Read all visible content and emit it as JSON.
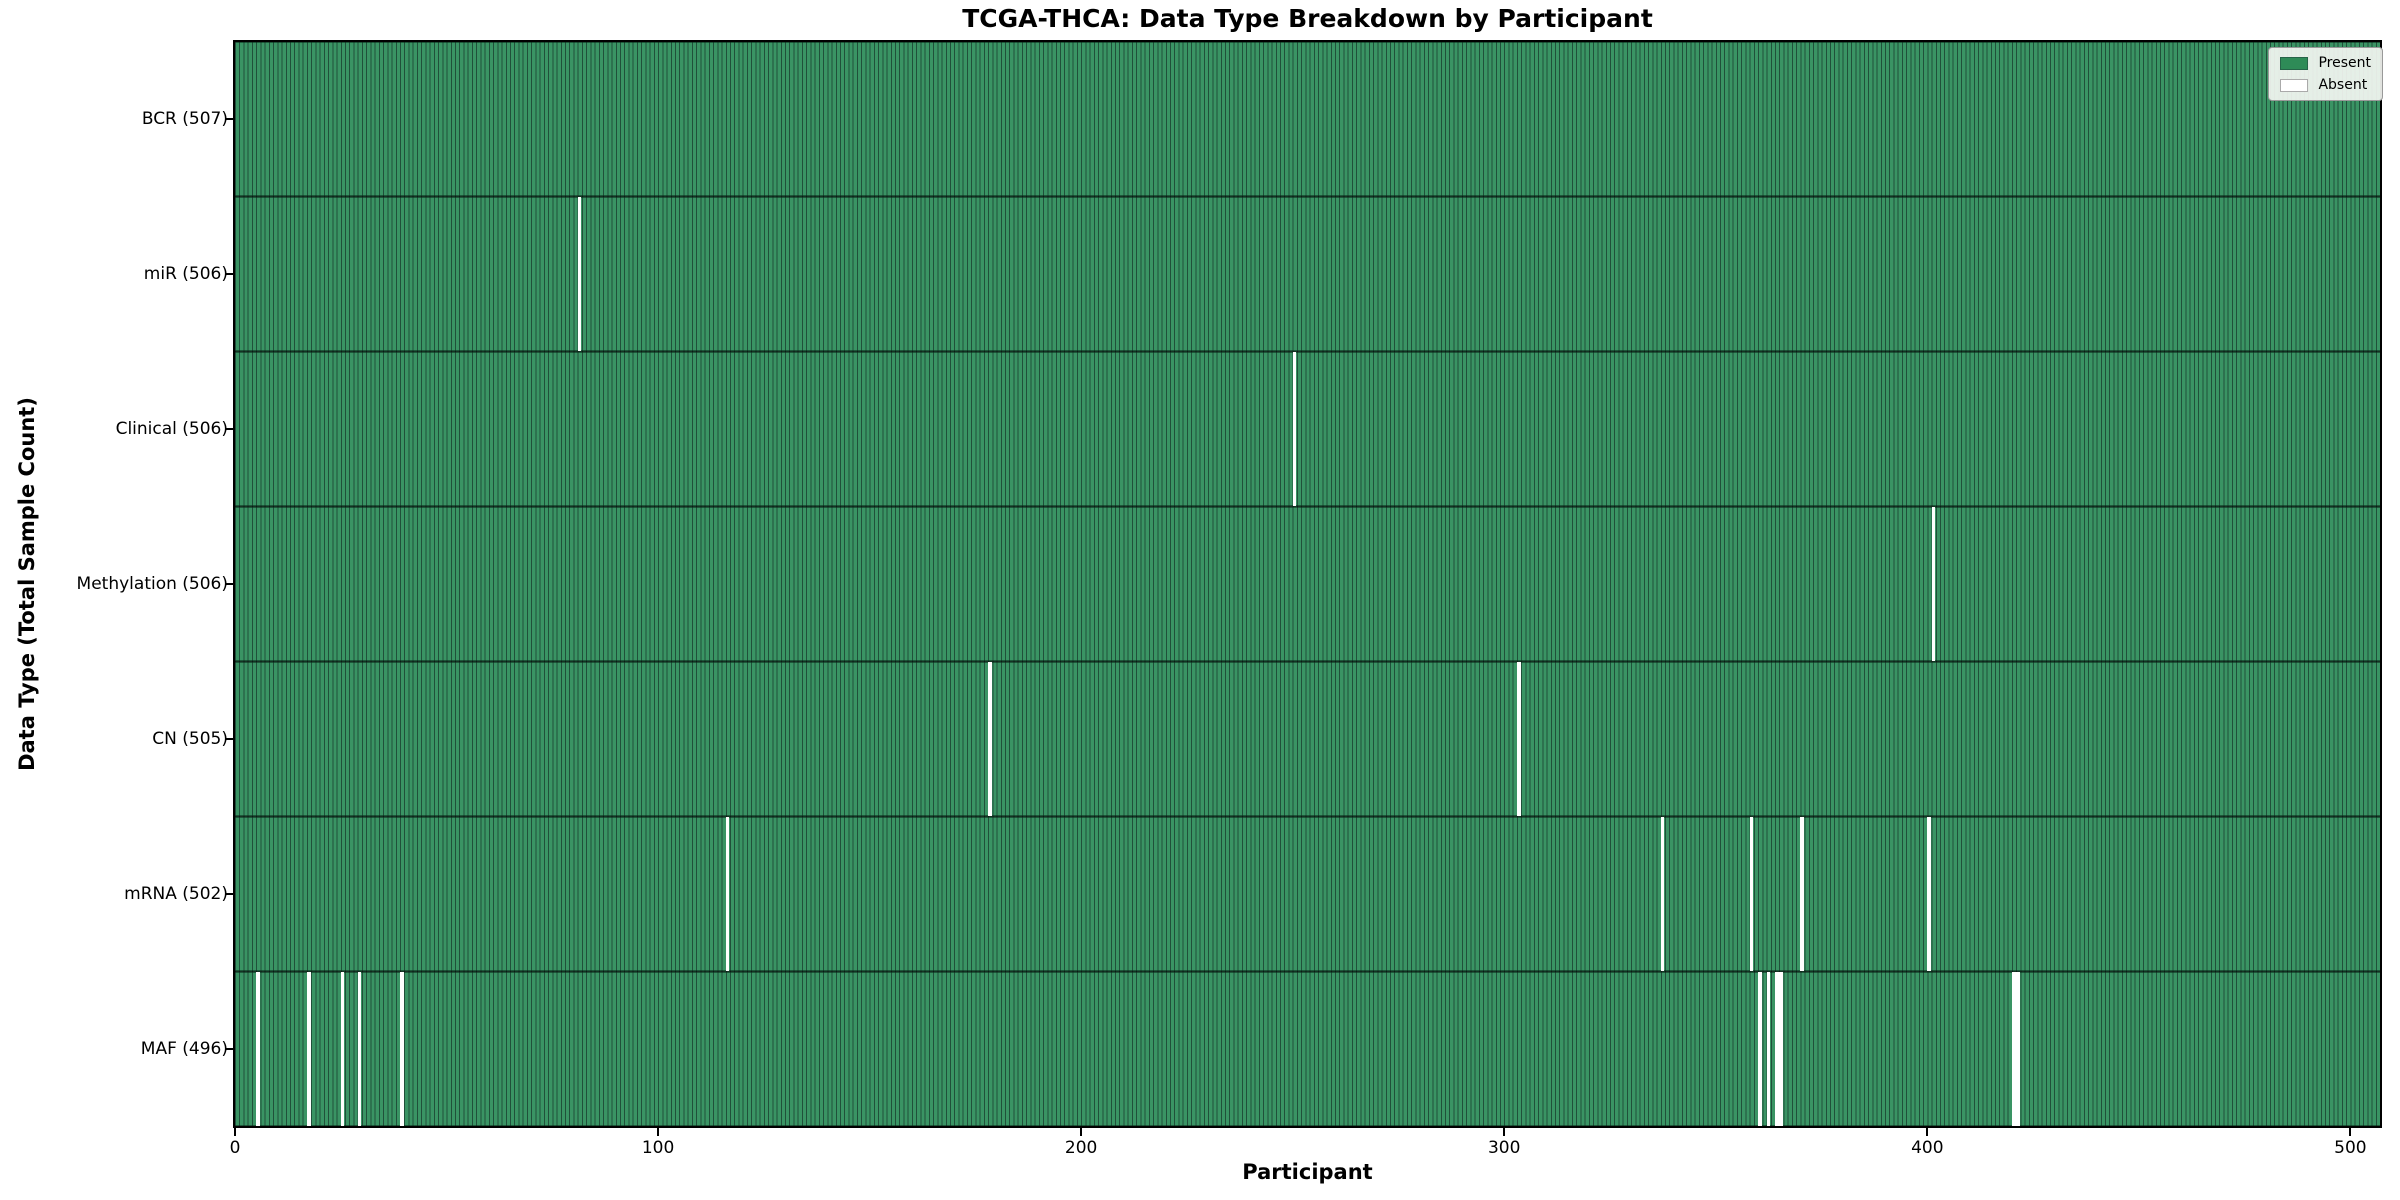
{
  "title": "TCGA-THCA: Data Type Breakdown by Participant",
  "axes": {
    "xlabel": "Participant",
    "ylabel": "Data Type (Total Sample Count)"
  },
  "legend": {
    "present_label": "Present",
    "absent_label": "Absent"
  },
  "colors": {
    "present": "#3a9464",
    "present_edge": "#20503a",
    "absent": "#ffffff",
    "legend_swatch_present": "#2e8b57",
    "legend_swatch_absent": "#ffffff"
  },
  "chart_data": {
    "type": "heatmap",
    "title": "TCGA-THCA: Data Type Breakdown by Participant",
    "xlabel": "Participant",
    "ylabel": "Data Type (Total Sample Count)",
    "xlim": [
      0,
      507
    ],
    "x_ticks": [
      0,
      100,
      200,
      300,
      400,
      500
    ],
    "grid": false,
    "legend_entries": [
      "Present",
      "Absent"
    ],
    "legend_position": "upper-right",
    "total_participants": 507,
    "rows": [
      {
        "label": "BCR (507)",
        "data_type": "BCR",
        "present_count": 507,
        "absent_participants": []
      },
      {
        "label": "miR (506)",
        "data_type": "miR",
        "present_count": 506,
        "absent_participants": [
          81
        ]
      },
      {
        "label": "Clinical (506)",
        "data_type": "Clinical",
        "present_count": 506,
        "absent_participants": [
          250
        ]
      },
      {
        "label": "Methylation (506)",
        "data_type": "Methylation",
        "present_count": 506,
        "absent_participants": [
          401
        ]
      },
      {
        "label": "CN (505)",
        "data_type": "CN",
        "present_count": 505,
        "absent_participants": [
          178,
          303
        ]
      },
      {
        "label": "mRNA (502)",
        "data_type": "mRNA",
        "present_count": 502,
        "absent_participants": [
          116,
          337,
          358,
          370,
          400
        ]
      },
      {
        "label": "MAF (496)",
        "data_type": "MAF",
        "present_count": 496,
        "absent_participants": [
          5,
          17,
          25,
          29,
          39,
          360,
          362,
          364,
          365,
          420,
          421
        ]
      }
    ]
  }
}
